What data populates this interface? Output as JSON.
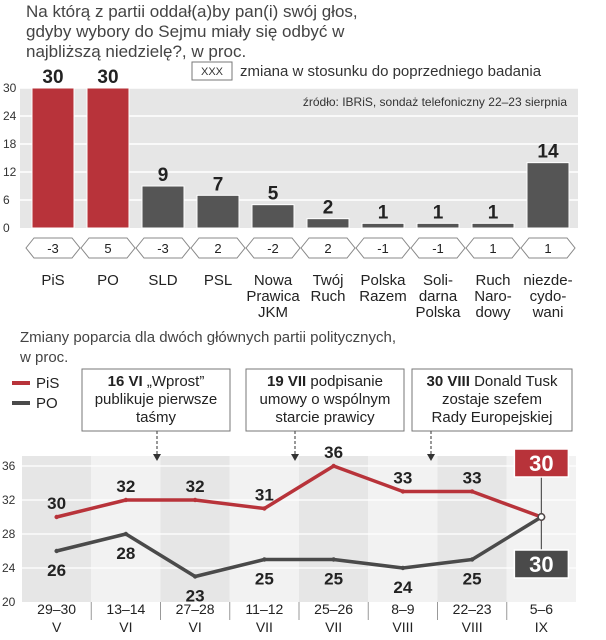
{
  "question": "Na którą z partii oddał(a)by pan(i) swój głos, gdyby wybory do Sejmu miały się odbyć w najbliższą niedzielę?, w proc.",
  "legend_top": {
    "box": "XXX",
    "text": "zmiana w stosunku do poprzedniego badania"
  },
  "source": "źródło: IBRiS, sondaż telefoniczny 22–23 sierpnia",
  "colors": {
    "pis": "#b8333a",
    "po": "#4a4a4a",
    "gray_bar": "#555555",
    "panel": "#e6e6e6"
  },
  "chart_data": [
    {
      "type": "bar",
      "categories": [
        "PiS",
        "PO",
        "SLD",
        "PSL",
        "Nowa Prawica JKM",
        "Twój Ruch",
        "Polska Razem",
        "Solidarna Polska",
        "Ruch Narodowy",
        "niezdecydowani"
      ],
      "category_lines": [
        [
          "PiS"
        ],
        [
          "PO"
        ],
        [
          "SLD"
        ],
        [
          "PSL"
        ],
        [
          "Nowa",
          "Prawica",
          "JKM"
        ],
        [
          "Twój",
          "Ruch"
        ],
        [
          "Polska",
          "Razem"
        ],
        [
          "Soli-",
          "darna",
          "Polska"
        ],
        [
          "Ruch",
          "Naro-",
          "dowy"
        ],
        [
          "niezde-",
          "cydo-",
          "wani"
        ]
      ],
      "values": [
        30,
        30,
        9,
        7,
        5,
        2,
        1,
        1,
        1,
        14
      ],
      "changes": [
        "-3",
        "5",
        "-3",
        "2",
        "-2",
        "2",
        "-1",
        "-1",
        "1",
        "1"
      ],
      "y_ticks": [
        "30",
        "24",
        "18",
        "12",
        "6",
        "0"
      ],
      "ylim": [
        0,
        30
      ]
    },
    {
      "type": "line",
      "title": "Zmiany poparcia dla dwóch głównych partii politycznych, w proc.",
      "x_top": [
        "29–30",
        "13–14",
        "27–28",
        "11–12",
        "25–26",
        "8–9",
        "22–23",
        "5–6"
      ],
      "x_bottom": [
        "V",
        "VI",
        "VI",
        "VII",
        "VII",
        "VIII",
        "VIII",
        "IX"
      ],
      "series": [
        {
          "name": "PiS",
          "values": [
            30,
            32,
            32,
            31,
            36,
            33,
            33,
            30
          ]
        },
        {
          "name": "PO",
          "values": [
            26,
            28,
            23,
            25,
            25,
            24,
            25,
            30
          ]
        }
      ],
      "y_ticks": [
        "36",
        "32",
        "28",
        "24",
        "20"
      ],
      "ylim": [
        20,
        36
      ],
      "annotations": [
        {
          "bold": "16 VI",
          "text": "„Wprost” publikuje pierwsze taśmy"
        },
        {
          "bold": "19 VII",
          "text": "podpisanie umowy o wspólnym starcie prawicy"
        },
        {
          "bold": "30 VIII",
          "text": "Donald Tusk zostaje szefem Rady Europejskiej"
        }
      ]
    }
  ]
}
